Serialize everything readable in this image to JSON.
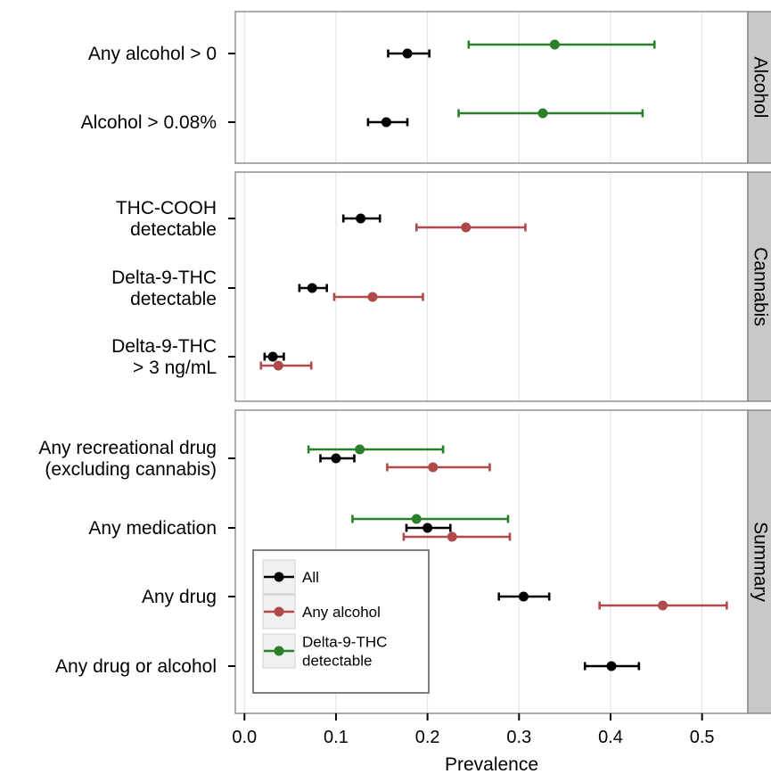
{
  "chart_data": {
    "type": "dot-errorbar",
    "xlabel": "Prevalence",
    "xlim": [
      -0.01,
      0.55
    ],
    "xticks": [
      0.0,
      0.1,
      0.2,
      0.3,
      0.4,
      0.5
    ],
    "xtick_labels": [
      "0.0",
      "0.1",
      "0.2",
      "0.3",
      "0.4",
      "0.5"
    ],
    "grid": true,
    "legend_position": "bottom-left",
    "series": [
      {
        "name": "All",
        "color": "#000000"
      },
      {
        "name": "Any alcohol",
        "color": "#b04a4a"
      },
      {
        "name": "Delta-9-THC\ndetectable",
        "color": "#2a7f2a"
      }
    ],
    "panels": [
      {
        "strip": "Alcohol",
        "rows": [
          {
            "label": "Any alcohol > 0",
            "points": [
              {
                "series": "All",
                "value": 0.178,
                "lower": 0.157,
                "upper": 0.202
              },
              {
                "series": "Delta-9-THC\ndetectable",
                "value": 0.339,
                "lower": 0.245,
                "upper": 0.448
              }
            ]
          },
          {
            "label": "Alcohol > 0.08%",
            "points": [
              {
                "series": "All",
                "value": 0.155,
                "lower": 0.135,
                "upper": 0.178
              },
              {
                "series": "Delta-9-THC\ndetectable",
                "value": 0.326,
                "lower": 0.234,
                "upper": 0.435
              }
            ]
          }
        ]
      },
      {
        "strip": "Cannabis",
        "rows": [
          {
            "label": "THC-COOH\ndetectable",
            "points": [
              {
                "series": "All",
                "value": 0.127,
                "lower": 0.108,
                "upper": 0.148
              },
              {
                "series": "Any alcohol",
                "value": 0.242,
                "lower": 0.188,
                "upper": 0.307
              }
            ]
          },
          {
            "label": "Delta-9-THC\ndetectable",
            "points": [
              {
                "series": "All",
                "value": 0.074,
                "lower": 0.06,
                "upper": 0.09
              },
              {
                "series": "Any alcohol",
                "value": 0.14,
                "lower": 0.098,
                "upper": 0.195
              }
            ]
          },
          {
            "label": "Delta-9-THC\n> 3 ng/mL",
            "points": [
              {
                "series": "All",
                "value": 0.031,
                "lower": 0.022,
                "upper": 0.043
              },
              {
                "series": "Any alcohol",
                "value": 0.037,
                "lower": 0.018,
                "upper": 0.073
              }
            ]
          }
        ]
      },
      {
        "strip": "Summary",
        "rows": [
          {
            "label": "Any recreational drug\n(excluding cannabis)",
            "points": [
              {
                "series": "All",
                "value": 0.1,
                "lower": 0.083,
                "upper": 0.12
              },
              {
                "series": "Any alcohol",
                "value": 0.206,
                "lower": 0.156,
                "upper": 0.268
              },
              {
                "series": "Delta-9-THC\ndetectable",
                "value": 0.126,
                "lower": 0.07,
                "upper": 0.217
              }
            ]
          },
          {
            "label": "Any medication",
            "points": [
              {
                "series": "All",
                "value": 0.2,
                "lower": 0.177,
                "upper": 0.225
              },
              {
                "series": "Any alcohol",
                "value": 0.227,
                "lower": 0.174,
                "upper": 0.29
              },
              {
                "series": "Delta-9-THC\ndetectable",
                "value": 0.188,
                "lower": 0.118,
                "upper": 0.288
              }
            ]
          },
          {
            "label": "Any drug",
            "points": [
              {
                "series": "All",
                "value": 0.305,
                "lower": 0.278,
                "upper": 0.333
              },
              {
                "series": "Any alcohol",
                "value": 0.457,
                "lower": 0.388,
                "upper": 0.527
              }
            ]
          },
          {
            "label": "Any drug or alcohol",
            "points": [
              {
                "series": "All",
                "value": 0.401,
                "lower": 0.372,
                "upper": 0.431
              }
            ]
          }
        ]
      }
    ]
  }
}
